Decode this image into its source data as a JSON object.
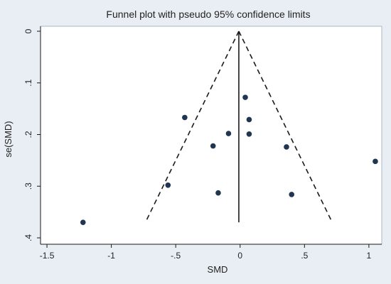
{
  "chart_data": {
    "type": "scatter",
    "title": "Funnel plot with pseudo 95% confidence limits",
    "xlabel": "SMD",
    "ylabel": "se(SMD)",
    "xlim": [
      -1.55,
      1.1
    ],
    "ylim": [
      0,
      0.4
    ],
    "y_reversed": true,
    "grid": false,
    "legend": "none",
    "x_ticks": [
      -1.5,
      -1,
      -0.5,
      0,
      0.5,
      1
    ],
    "x_tick_labels": [
      "-1.5",
      "-1",
      "-.5",
      "0",
      ".5",
      "1"
    ],
    "y_ticks": [
      0,
      0.1,
      0.2,
      0.3,
      0.4
    ],
    "y_tick_labels": [
      "0",
      ".1",
      ".2",
      ".3",
      ".4"
    ],
    "pooled_effect": -0.01,
    "funnel_se_max": 0.37,
    "points": [
      {
        "x": 0.04,
        "y": 0.128
      },
      {
        "x": 0.07,
        "y": 0.171
      },
      {
        "x": -0.43,
        "y": 0.167
      },
      {
        "x": -0.09,
        "y": 0.198
      },
      {
        "x": 0.07,
        "y": 0.199
      },
      {
        "x": -0.21,
        "y": 0.222
      },
      {
        "x": 0.36,
        "y": 0.224
      },
      {
        "x": 1.05,
        "y": 0.252
      },
      {
        "x": -0.56,
        "y": 0.298
      },
      {
        "x": -0.17,
        "y": 0.313
      },
      {
        "x": 0.4,
        "y": 0.316
      },
      {
        "x": -1.22,
        "y": 0.37
      }
    ],
    "colors": {
      "background": "#e8eef3",
      "plot_area": "#ffffff",
      "marker": "#1f3550",
      "line": "#1a1a1a"
    }
  }
}
